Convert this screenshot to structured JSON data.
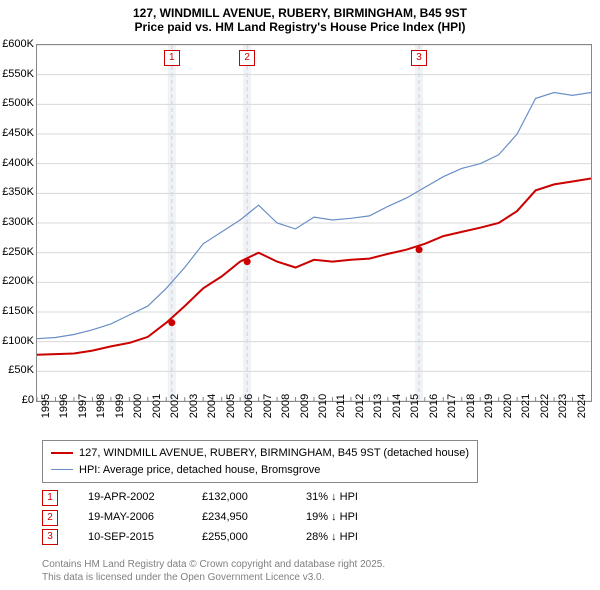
{
  "title_line1": "127, WINDMILL AVENUE, RUBERY, BIRMINGHAM, B45 9ST",
  "title_line2": "Price paid vs. HM Land Registry's House Price Index (HPI)",
  "chart": {
    "xmin": 1995,
    "xmax": 2025,
    "ymin": 0,
    "ymax": 600000,
    "yticks": [
      0,
      50000,
      100000,
      150000,
      200000,
      250000,
      300000,
      350000,
      400000,
      450000,
      500000,
      550000,
      600000
    ],
    "ytick_labels": [
      "£0",
      "£50K",
      "£100K",
      "£150K",
      "£200K",
      "£250K",
      "£300K",
      "£350K",
      "£400K",
      "£450K",
      "£500K",
      "£550K",
      "£600K"
    ],
    "xticks": [
      1995,
      1996,
      1997,
      1998,
      1999,
      2000,
      2001,
      2002,
      2003,
      2004,
      2005,
      2006,
      2007,
      2008,
      2009,
      2010,
      2011,
      2012,
      2013,
      2014,
      2015,
      2016,
      2017,
      2018,
      2019,
      2020,
      2021,
      2022,
      2023,
      2024
    ],
    "grid_color": "#d8d8d8",
    "marker_band_color": "#eef3f8",
    "marker_line_color": "#f2c2c2",
    "series": {
      "price_paid": {
        "color": "#cc0000",
        "width": 2,
        "points": [
          [
            1995,
            78000
          ],
          [
            1996,
            79000
          ],
          [
            1997,
            80000
          ],
          [
            1998,
            85000
          ],
          [
            1999,
            92000
          ],
          [
            2000,
            98000
          ],
          [
            2001,
            108000
          ],
          [
            2002,
            132000
          ],
          [
            2003,
            160000
          ],
          [
            2004,
            190000
          ],
          [
            2005,
            210000
          ],
          [
            2006,
            235000
          ],
          [
            2007,
            250000
          ],
          [
            2008,
            235000
          ],
          [
            2009,
            225000
          ],
          [
            2010,
            238000
          ],
          [
            2011,
            235000
          ],
          [
            2012,
            238000
          ],
          [
            2013,
            240000
          ],
          [
            2014,
            248000
          ],
          [
            2015,
            255000
          ],
          [
            2016,
            265000
          ],
          [
            2017,
            278000
          ],
          [
            2018,
            285000
          ],
          [
            2019,
            292000
          ],
          [
            2020,
            300000
          ],
          [
            2021,
            320000
          ],
          [
            2022,
            355000
          ],
          [
            2023,
            365000
          ],
          [
            2024,
            370000
          ],
          [
            2025,
            375000
          ]
        ],
        "markers": [
          {
            "n": "1",
            "x": 2002.3,
            "y": 132000
          },
          {
            "n": "2",
            "x": 2006.38,
            "y": 234950
          },
          {
            "n": "3",
            "x": 2015.69,
            "y": 255000
          }
        ]
      },
      "hpi": {
        "color": "#6a8fc7",
        "width": 1.2,
        "points": [
          [
            1995,
            105000
          ],
          [
            1996,
            107000
          ],
          [
            1997,
            112000
          ],
          [
            1998,
            120000
          ],
          [
            1999,
            130000
          ],
          [
            2000,
            145000
          ],
          [
            2001,
            160000
          ],
          [
            2002,
            190000
          ],
          [
            2003,
            225000
          ],
          [
            2004,
            265000
          ],
          [
            2005,
            285000
          ],
          [
            2006,
            305000
          ],
          [
            2007,
            330000
          ],
          [
            2008,
            300000
          ],
          [
            2009,
            290000
          ],
          [
            2010,
            310000
          ],
          [
            2011,
            305000
          ],
          [
            2012,
            308000
          ],
          [
            2013,
            312000
          ],
          [
            2014,
            328000
          ],
          [
            2015,
            342000
          ],
          [
            2016,
            360000
          ],
          [
            2017,
            378000
          ],
          [
            2018,
            392000
          ],
          [
            2019,
            400000
          ],
          [
            2020,
            415000
          ],
          [
            2021,
            450000
          ],
          [
            2022,
            510000
          ],
          [
            2023,
            520000
          ],
          [
            2024,
            515000
          ],
          [
            2025,
            520000
          ]
        ]
      }
    }
  },
  "legend": {
    "price_paid": "127, WINDMILL AVENUE, RUBERY, BIRMINGHAM, B45 9ST (detached house)",
    "hpi": "HPI: Average price, detached house, Bromsgrove"
  },
  "events": [
    {
      "n": "1",
      "date": "19-APR-2002",
      "price": "£132,000",
      "diff": "31% ↓ HPI"
    },
    {
      "n": "2",
      "date": "19-MAY-2006",
      "price": "£234,950",
      "diff": "19% ↓ HPI"
    },
    {
      "n": "3",
      "date": "10-SEP-2015",
      "price": "£255,000",
      "diff": "28% ↓ HPI"
    }
  ],
  "footer_line1": "Contains HM Land Registry data © Crown copyright and database right 2025.",
  "footer_line2": "This data is licensed under the Open Government Licence v3.0."
}
